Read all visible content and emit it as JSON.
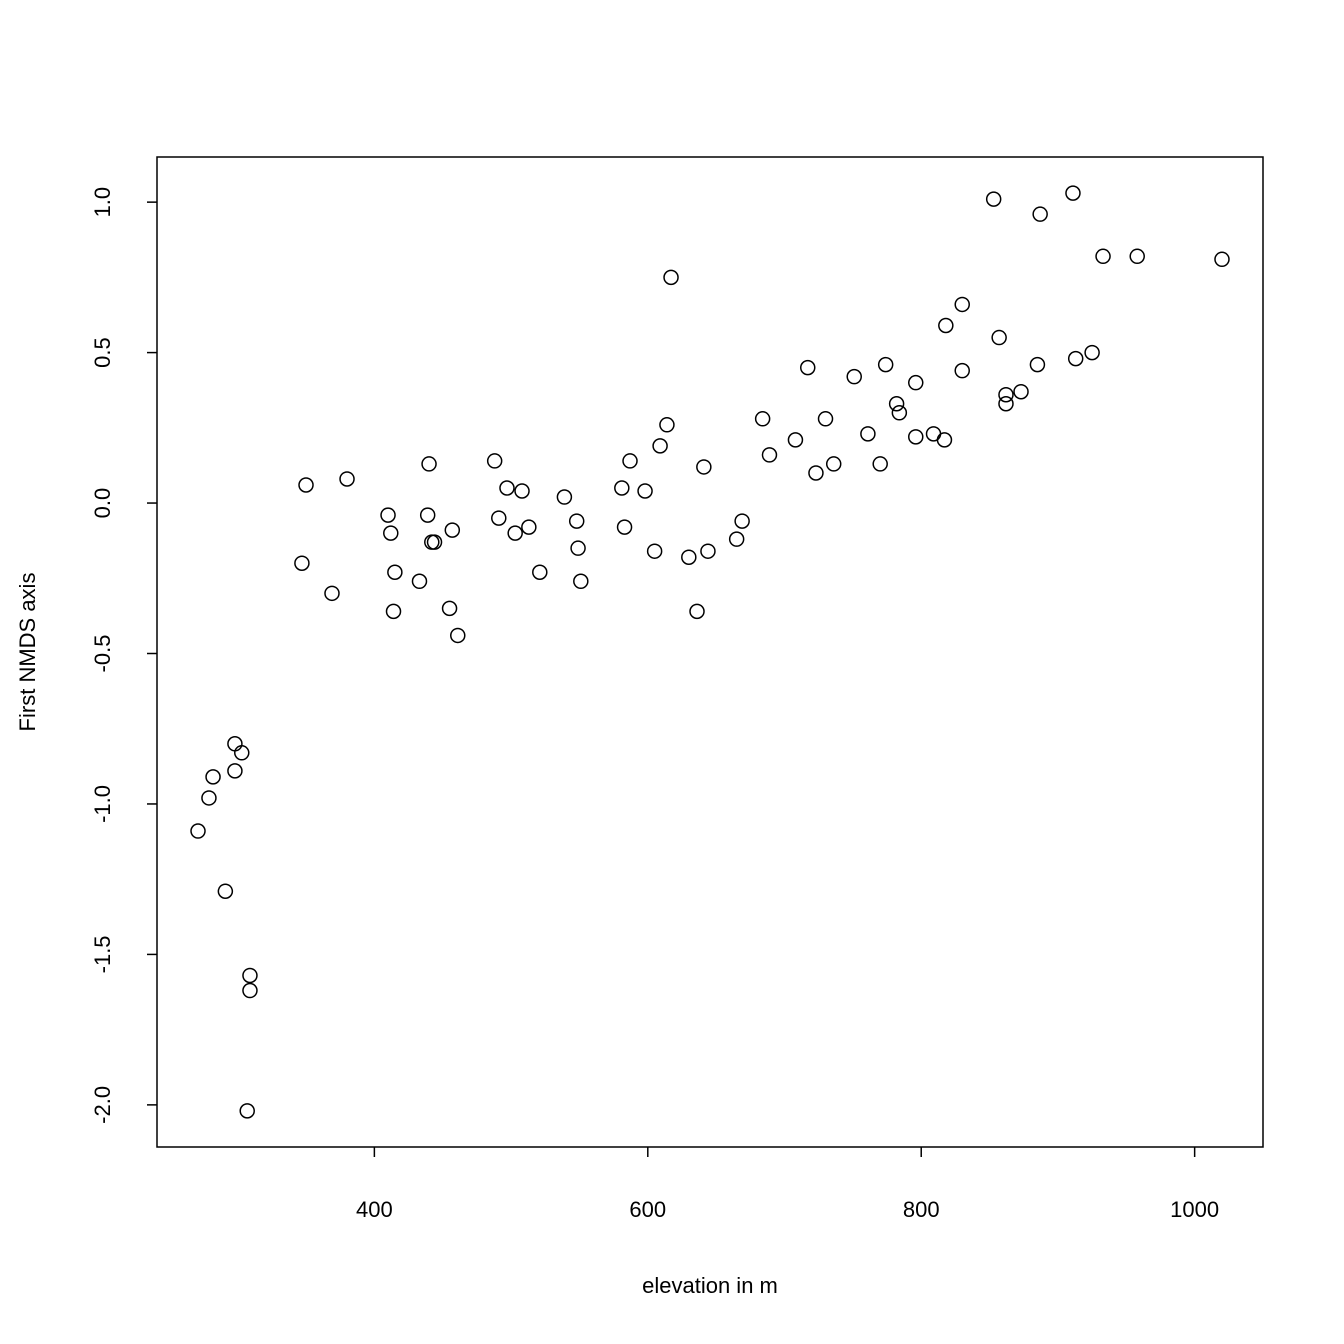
{
  "chart_data": {
    "type": "scatter",
    "x_label": "elevation in m",
    "y_label": "First NMDS axis",
    "x": [
      271,
      279,
      282,
      298,
      298,
      303,
      291,
      309,
      309,
      307,
      347,
      350,
      369,
      380,
      410,
      412,
      415,
      414,
      433,
      440,
      439,
      442,
      444,
      457,
      455,
      461,
      488,
      491,
      497,
      508,
      503,
      513,
      521,
      539,
      548,
      549,
      551,
      581,
      583,
      587,
      598,
      605,
      609,
      614,
      617,
      630,
      636,
      641,
      644,
      665,
      669,
      684,
      689,
      708,
      717,
      723,
      730,
      736,
      751,
      761,
      770,
      774,
      782,
      784,
      796,
      796,
      809,
      817,
      818,
      830,
      830,
      853,
      857,
      862,
      862,
      873,
      885,
      887,
      911,
      913,
      925,
      933,
      958,
      1020
    ],
    "values": [
      -1.09,
      -0.98,
      -0.91,
      -0.8,
      -0.89,
      -0.83,
      -1.29,
      -1.57,
      -1.62,
      -2.02,
      -0.2,
      0.06,
      -0.3,
      0.08,
      -0.04,
      -0.1,
      -0.23,
      -0.36,
      -0.26,
      0.13,
      -0.04,
      -0.13,
      -0.13,
      -0.09,
      -0.35,
      -0.44,
      0.14,
      -0.05,
      0.05,
      0.04,
      -0.1,
      -0.08,
      -0.23,
      0.02,
      -0.06,
      -0.15,
      -0.26,
      0.05,
      -0.08,
      0.14,
      0.04,
      -0.16,
      0.19,
      0.26,
      0.75,
      -0.18,
      -0.36,
      0.12,
      -0.16,
      -0.12,
      -0.06,
      0.28,
      0.16,
      0.21,
      0.45,
      0.1,
      0.28,
      0.13,
      0.42,
      0.23,
      0.13,
      0.46,
      0.33,
      0.3,
      0.4,
      0.22,
      0.23,
      0.21,
      0.59,
      0.66,
      0.44,
      1.01,
      0.55,
      0.36,
      0.33,
      0.37,
      0.46,
      0.96,
      1.03,
      0.48,
      0.5,
      0.82,
      0.82,
      0.81
    ],
    "color": "#000000",
    "xlim": [
      241,
      1050
    ],
    "ylim": [
      -2.14,
      1.15
    ],
    "xticks": [
      400,
      600,
      800,
      1000
    ],
    "yticks": [
      {
        "value": -2,
        "label": "-2.0"
      },
      {
        "value": -1.5,
        "label": "-1.5"
      },
      {
        "value": -1,
        "label": "-1.0"
      },
      {
        "value": -0.5,
        "label": "-0.5"
      },
      {
        "value": 0,
        "label": "0.0"
      },
      {
        "value": 0.5,
        "label": "0.5"
      },
      {
        "value": 1,
        "label": "1.0"
      }
    ]
  }
}
